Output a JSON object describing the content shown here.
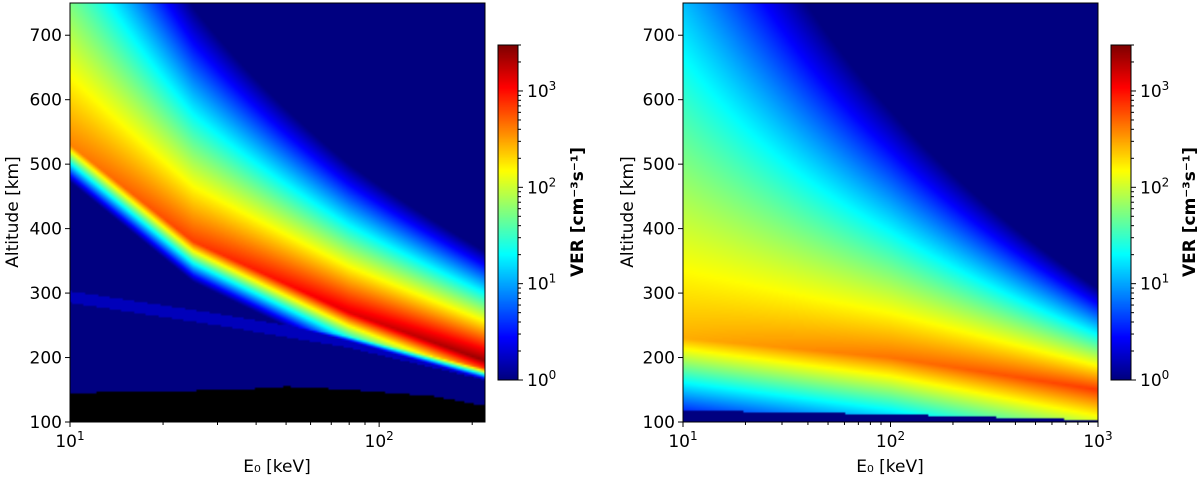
{
  "chart_data": [
    {
      "type": "heatmap",
      "title": "",
      "xlabel": "E₀ [keV]",
      "ylabel": "Altitude [km]",
      "xscale": "log",
      "xlim": [
        10,
        220
      ],
      "ylim": [
        100,
        750
      ],
      "x_ticks": [
        {
          "value": 10,
          "base": "10",
          "exp": "1"
        },
        {
          "value": 100,
          "base": "10",
          "exp": "2"
        }
      ],
      "y_ticks": [
        100,
        200,
        300,
        400,
        500,
        600,
        700
      ],
      "colorbar": {
        "label": "VER [cm⁻³s⁻¹]",
        "scale": "log",
        "colormap": "jet",
        "range": [
          1,
          3000
        ],
        "ticks": [
          {
            "value": 1,
            "base": "10",
            "exp": "0"
          },
          {
            "value": 10,
            "base": "10",
            "exp": "1"
          },
          {
            "value": 100,
            "base": "10",
            "exp": "2"
          },
          {
            "value": 1000,
            "base": "10",
            "exp": "3"
          }
        ]
      },
      "features": {
        "peak_altitude_km": [
          [
            10,
            530
          ],
          [
            25,
            380
          ],
          [
            80,
            270
          ],
          [
            220,
            195
          ]
        ],
        "lower_cutoff_km": [
          [
            10,
            285
          ],
          [
            30,
            250
          ],
          [
            80,
            215
          ],
          [
            220,
            165
          ]
        ],
        "black_region_top_km": [
          [
            10,
            145
          ],
          [
            35,
            150
          ],
          [
            50,
            155
          ],
          [
            80,
            150
          ],
          [
            150,
            140
          ],
          [
            220,
            125
          ]
        ],
        "max_ver": 3000
      }
    },
    {
      "type": "heatmap",
      "title": "",
      "xlabel": "E₀ [keV]",
      "ylabel": "Altitude [km]",
      "xscale": "log",
      "xlim": [
        10,
        1000
      ],
      "ylim": [
        100,
        750
      ],
      "x_ticks": [
        {
          "value": 10,
          "base": "10",
          "exp": "1"
        },
        {
          "value": 100,
          "base": "10",
          "exp": "2"
        },
        {
          "value": 1000,
          "base": "10",
          "exp": "3"
        }
      ],
      "y_ticks": [
        100,
        200,
        300,
        400,
        500,
        600,
        700
      ],
      "colorbar": {
        "label": "VER [cm⁻³s⁻¹]",
        "scale": "log",
        "colormap": "jet",
        "range": [
          1,
          3000
        ],
        "ticks": [
          {
            "value": 1,
            "base": "10",
            "exp": "0"
          },
          {
            "value": 10,
            "base": "10",
            "exp": "1"
          },
          {
            "value": 100,
            "base": "10",
            "exp": "2"
          },
          {
            "value": 1000,
            "base": "10",
            "exp": "3"
          }
        ]
      },
      "features": {
        "peak_altitude_km": [
          [
            10,
            230
          ],
          [
            100,
            200
          ],
          [
            1000,
            150
          ]
        ],
        "lower_cutoff_km": [
          [
            10,
            118
          ],
          [
            100,
            112
          ],
          [
            1000,
            103
          ]
        ],
        "max_ver": 1000
      }
    }
  ]
}
